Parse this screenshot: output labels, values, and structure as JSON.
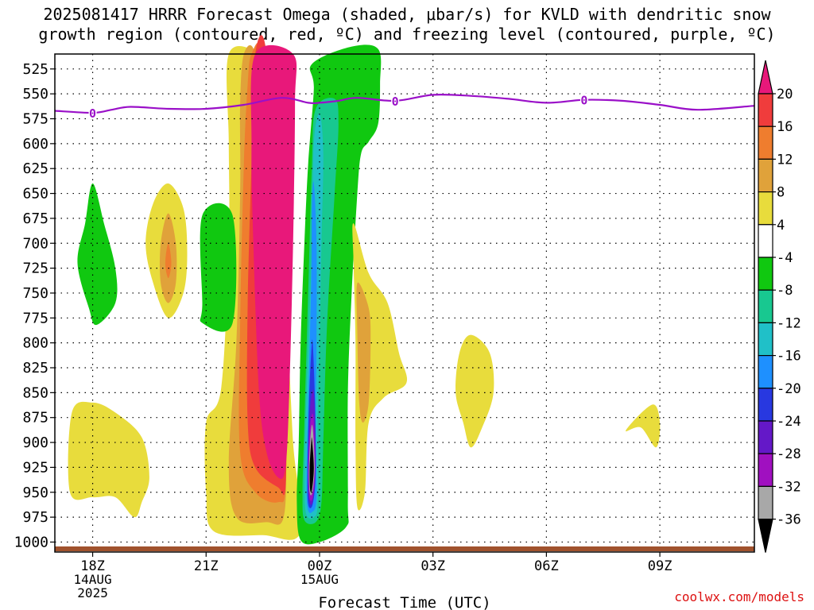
{
  "title": {
    "line1": "2025081417 HRRR Forecast Omega (shaded, μbar/s) for KVLD with dendritic snow",
    "line2": "growth region (contoured, red, ºC) and freezing level (contoured, purple, ºC)"
  },
  "credit": "coolwx.com/models",
  "chart_data": {
    "type": "time-height contour",
    "xlabel": "Forecast Time (UTC)",
    "ylabel": "",
    "x_range_hours_from_18Z": [
      -1.0,
      17.5
    ],
    "y_range_mb": [
      510,
      1010
    ],
    "x_ticks": [
      {
        "h": 0,
        "lines": [
          "18Z",
          "14AUG",
          "2025"
        ]
      },
      {
        "h": 3,
        "lines": [
          "21Z"
        ]
      },
      {
        "h": 6,
        "lines": [
          "00Z",
          "15AUG"
        ]
      },
      {
        "h": 9,
        "lines": [
          "03Z"
        ]
      },
      {
        "h": 12,
        "lines": [
          "06Z"
        ]
      },
      {
        "h": 15,
        "lines": [
          "09Z"
        ]
      }
    ],
    "y_ticks": [
      525,
      550,
      575,
      600,
      625,
      650,
      675,
      700,
      725,
      750,
      775,
      800,
      825,
      850,
      875,
      900,
      925,
      950,
      975,
      1000
    ],
    "grid": true,
    "colorbar": {
      "labels": [
        "20",
        "16",
        "12",
        "8",
        "4",
        "-4",
        "-8",
        "-12",
        "-16",
        "-20",
        "-24",
        "-28",
        "-32",
        "-36"
      ],
      "levels": [
        {
          "range": ">20",
          "color": "#e8187a"
        },
        {
          "range": "16–20",
          "color": "#f03c3c"
        },
        {
          "range": "12–16",
          "color": "#ef7d2e"
        },
        {
          "range": "8–12",
          "color": "#e0a23a"
        },
        {
          "range": "4–8",
          "color": "#e8dc3c"
        },
        {
          "range": "-4–4",
          "color": "#ffffff"
        },
        {
          "range": "-8–-4",
          "color": "#10c810"
        },
        {
          "range": "-12–-8",
          "color": "#18c890"
        },
        {
          "range": "-16–-12",
          "color": "#20c0c8"
        },
        {
          "range": "-20–-16",
          "color": "#1e90ff"
        },
        {
          "range": "-24–-20",
          "color": "#2838e0"
        },
        {
          "range": "-28–-24",
          "color": "#6418c8"
        },
        {
          "range": "-32–-28",
          "color": "#a010c0"
        },
        {
          "range": "-36–-32",
          "color": "#a8a8a8"
        },
        {
          "range": "<-36",
          "color": "#000000"
        }
      ]
    },
    "freezing_level": {
      "label": "0",
      "color": "#9a10c8",
      "points": [
        [
          -1.0,
          567
        ],
        [
          0,
          569
        ],
        [
          0.5,
          566
        ],
        [
          1.0,
          563
        ],
        [
          2.0,
          565
        ],
        [
          3.0,
          565
        ],
        [
          4.0,
          561
        ],
        [
          5.0,
          554
        ],
        [
          5.7,
          559
        ],
        [
          6.0,
          559
        ],
        [
          6.5,
          557
        ],
        [
          7.0,
          554
        ],
        [
          8.0,
          557
        ],
        [
          9.0,
          551
        ],
        [
          10.0,
          552
        ],
        [
          11.0,
          555
        ],
        [
          12.0,
          559
        ],
        [
          13.0,
          556
        ],
        [
          14.0,
          557
        ],
        [
          15.0,
          561
        ],
        [
          16.0,
          566
        ],
        [
          17.5,
          562
        ]
      ],
      "label_at_hours": [
        0.0,
        8.0,
        13.0
      ]
    },
    "omega_regions": [
      {
        "level": "4–8",
        "color": "#e8dc3c",
        "points": [
          [
            3.6,
            510
          ],
          [
            4.4,
            510
          ],
          [
            4.8,
            540
          ],
          [
            4.5,
            580
          ],
          [
            4.7,
            660
          ],
          [
            5.1,
            760
          ],
          [
            5.3,
            900
          ],
          [
            5.5,
            990
          ],
          [
            4.5,
            993
          ],
          [
            3.2,
            989
          ],
          [
            3.0,
            950
          ],
          [
            3.0,
            880
          ],
          [
            3.4,
            845
          ],
          [
            3.6,
            700
          ],
          [
            3.6,
            600
          ]
        ]
      },
      {
        "level": "8–12",
        "color": "#e0a23a",
        "points": [
          [
            4.0,
            510
          ],
          [
            4.3,
            510
          ],
          [
            4.6,
            600
          ],
          [
            4.9,
            760
          ],
          [
            5.1,
            900
          ],
          [
            5.05,
            975
          ],
          [
            4.6,
            980
          ],
          [
            3.8,
            975
          ],
          [
            3.6,
            920
          ],
          [
            3.8,
            800
          ],
          [
            3.9,
            650
          ],
          [
            3.9,
            560
          ]
        ]
      },
      {
        "level": "12–16",
        "color": "#ef7d2e",
        "points": [
          [
            4.2,
            510
          ],
          [
            4.5,
            510
          ],
          [
            4.8,
            650
          ],
          [
            5.0,
            800
          ],
          [
            5.1,
            940
          ],
          [
            4.9,
            960
          ],
          [
            4.3,
            950
          ],
          [
            3.9,
            910
          ],
          [
            3.9,
            780
          ],
          [
            4.0,
            620
          ],
          [
            4.1,
            540
          ]
        ]
      },
      {
        "level": "16–20",
        "color": "#f03c3c",
        "points": [
          [
            4.3,
            510
          ],
          [
            4.6,
            510
          ],
          [
            4.9,
            700
          ],
          [
            5.1,
            850
          ],
          [
            5.1,
            945
          ],
          [
            4.9,
            945
          ],
          [
            4.3,
            925
          ],
          [
            4.1,
            880
          ],
          [
            4.1,
            760
          ],
          [
            4.2,
            620
          ]
        ]
      },
      {
        "level": ">20",
        "color": "#e8187a",
        "points": [
          [
            4.3,
            510
          ],
          [
            5.3,
            510
          ],
          [
            5.35,
            560
          ],
          [
            5.3,
            700
          ],
          [
            5.2,
            850
          ],
          [
            5.1,
            925
          ],
          [
            4.9,
            935
          ],
          [
            4.6,
            910
          ],
          [
            4.4,
            850
          ],
          [
            4.25,
            700
          ],
          [
            4.2,
            600
          ]
        ]
      },
      {
        "level": "-8–-4",
        "color": "#10c810",
        "points": [
          [
            5.8,
            520
          ],
          [
            6.8,
            503
          ],
          [
            7.55,
            505
          ],
          [
            7.6,
            540
          ],
          [
            7.55,
            580
          ],
          [
            7.3,
            598
          ],
          [
            7.1,
            610
          ],
          [
            7.0,
            650
          ],
          [
            6.85,
            750
          ],
          [
            6.75,
            850
          ],
          [
            6.75,
            960
          ],
          [
            6.7,
            985
          ],
          [
            6.0,
            1000
          ],
          [
            5.5,
            998
          ],
          [
            5.4,
            960
          ],
          [
            5.45,
            900
          ],
          [
            5.5,
            800
          ],
          [
            5.6,
            700
          ],
          [
            5.7,
            620
          ],
          [
            5.85,
            545
          ]
        ]
      },
      {
        "level": "-12–-8",
        "color": "#18c890",
        "points": [
          [
            6.4,
            555
          ],
          [
            6.5,
            580
          ],
          [
            6.4,
            650
          ],
          [
            6.2,
            780
          ],
          [
            6.1,
            900
          ],
          [
            6.05,
            960
          ],
          [
            5.9,
            980
          ],
          [
            5.6,
            978
          ],
          [
            5.55,
            950
          ],
          [
            5.6,
            880
          ],
          [
            5.7,
            750
          ],
          [
            5.8,
            620
          ],
          [
            5.9,
            565
          ]
        ]
      },
      {
        "level": "-16–-12",
        "color": "#20c0c8",
        "points": [
          [
            6.0,
            570
          ],
          [
            6.1,
            610
          ],
          [
            6.05,
            700
          ],
          [
            6.0,
            800
          ],
          [
            5.95,
            880
          ],
          [
            5.95,
            960
          ],
          [
            5.85,
            975
          ],
          [
            5.65,
            972
          ],
          [
            5.6,
            940
          ],
          [
            5.65,
            860
          ],
          [
            5.8,
            700
          ],
          [
            5.85,
            600
          ]
        ]
      },
      {
        "level": "-20–-16",
        "color": "#1e90ff",
        "points": [
          [
            5.85,
            640
          ],
          [
            5.92,
            700
          ],
          [
            5.92,
            800
          ],
          [
            5.9,
            880
          ],
          [
            5.92,
            955
          ],
          [
            5.8,
            970
          ],
          [
            5.68,
            965
          ],
          [
            5.66,
            930
          ],
          [
            5.7,
            860
          ],
          [
            5.78,
            740
          ],
          [
            5.8,
            660
          ]
        ]
      },
      {
        "level": "-24–-20",
        "color": "#2838e0",
        "points": [
          [
            5.82,
            800
          ],
          [
            5.88,
            860
          ],
          [
            5.9,
            930
          ],
          [
            5.82,
            962
          ],
          [
            5.7,
            962
          ],
          [
            5.68,
            930
          ],
          [
            5.72,
            860
          ],
          [
            5.78,
            810
          ]
        ]
      },
      {
        "level": "-28–-24",
        "color": "#6418c8",
        "points": [
          [
            5.85,
            850
          ],
          [
            5.9,
            920
          ],
          [
            5.83,
            958
          ],
          [
            5.72,
            958
          ],
          [
            5.7,
            920
          ],
          [
            5.75,
            865
          ]
        ]
      },
      {
        "level": "-32–-28",
        "color": "#a010c0",
        "points": [
          [
            5.84,
            875
          ],
          [
            5.88,
            925
          ],
          [
            5.82,
            955
          ],
          [
            5.73,
            955
          ],
          [
            5.7,
            925
          ],
          [
            5.76,
            880
          ]
        ]
      },
      {
        "level": "-36–-32",
        "color": "#a8a8a8",
        "points": [
          [
            5.82,
            885
          ],
          [
            5.87,
            925
          ],
          [
            5.81,
            950
          ],
          [
            5.74,
            950
          ],
          [
            5.72,
            925
          ],
          [
            5.77,
            890
          ]
        ]
      },
      {
        "level": "<-36",
        "color": "#000000",
        "points": [
          [
            5.8,
            897
          ],
          [
            5.85,
            925
          ],
          [
            5.8,
            947
          ],
          [
            5.75,
            947
          ],
          [
            5.74,
            925
          ],
          [
            5.78,
            900
          ]
        ]
      },
      {
        "level": "-8–-4",
        "color": "#10c810",
        "points": [
          [
            0.0,
            640
          ],
          [
            0.3,
            680
          ],
          [
            0.6,
            725
          ],
          [
            0.6,
            760
          ],
          [
            0.1,
            782
          ],
          [
            -0.1,
            765
          ],
          [
            -0.4,
            720
          ],
          [
            -0.2,
            680
          ]
        ]
      },
      {
        "level": "4–8",
        "color": "#e8dc3c",
        "points": [
          [
            2.0,
            640
          ],
          [
            2.4,
            665
          ],
          [
            2.5,
            710
          ],
          [
            2.4,
            750
          ],
          [
            2.0,
            775
          ],
          [
            1.6,
            740
          ],
          [
            1.4,
            700
          ],
          [
            1.6,
            660
          ]
        ]
      },
      {
        "level": "8–12",
        "color": "#e0a23a",
        "points": [
          [
            2.0,
            670
          ],
          [
            2.2,
            700
          ],
          [
            2.2,
            740
          ],
          [
            2.0,
            760
          ],
          [
            1.8,
            740
          ],
          [
            1.8,
            700
          ]
        ]
      },
      {
        "level": "12–16",
        "color": "#ef7d2e",
        "points": [
          [
            2.0,
            700
          ],
          [
            2.08,
            720
          ],
          [
            2.0,
            735
          ],
          [
            1.92,
            720
          ]
        ]
      },
      {
        "level": "-8–-4",
        "color": "#10c810",
        "points": [
          [
            2.9,
            672
          ],
          [
            3.7,
            672
          ],
          [
            3.7,
            780
          ],
          [
            2.9,
            780
          ],
          [
            2.9,
            760
          ]
        ]
      },
      {
        "level": "4–8",
        "color": "#e8dc3c",
        "points": [
          [
            0.0,
            860
          ],
          [
            0.6,
            870
          ],
          [
            1.3,
            895
          ],
          [
            1.5,
            935
          ],
          [
            1.3,
            960
          ],
          [
            1.1,
            975
          ],
          [
            0.6,
            955
          ],
          [
            0.0,
            955
          ],
          [
            -0.6,
            950
          ],
          [
            -0.55,
            870
          ]
        ]
      },
      {
        "level": "4–8",
        "color": "#e8dc3c",
        "points": [
          [
            6.9,
            680
          ],
          [
            7.3,
            730
          ],
          [
            7.8,
            760
          ],
          [
            8.1,
            810
          ],
          [
            8.3,
            840
          ],
          [
            7.7,
            855
          ],
          [
            7.3,
            880
          ],
          [
            7.2,
            950
          ],
          [
            7.0,
            965
          ],
          [
            6.95,
            900
          ],
          [
            6.95,
            800
          ],
          [
            6.9,
            720
          ]
        ]
      },
      {
        "level": "8–12",
        "color": "#e0a23a",
        "points": [
          [
            7.0,
            740
          ],
          [
            7.3,
            765
          ],
          [
            7.35,
            800
          ],
          [
            7.3,
            860
          ],
          [
            7.15,
            880
          ],
          [
            7.05,
            860
          ],
          [
            7.0,
            790
          ]
        ]
      },
      {
        "level": "4–8",
        "color": "#e8dc3c",
        "points": [
          [
            10.0,
            792
          ],
          [
            10.5,
            810
          ],
          [
            10.6,
            850
          ],
          [
            10.3,
            885
          ],
          [
            10.0,
            905
          ],
          [
            9.8,
            880
          ],
          [
            9.6,
            850
          ],
          [
            9.7,
            810
          ]
        ]
      },
      {
        "level": "4–8",
        "color": "#e8dc3c",
        "points": [
          [
            14.8,
            862
          ],
          [
            15.0,
            880
          ],
          [
            14.9,
            905
          ],
          [
            14.5,
            885
          ],
          [
            14.1,
            888
          ]
        ]
      }
    ]
  }
}
